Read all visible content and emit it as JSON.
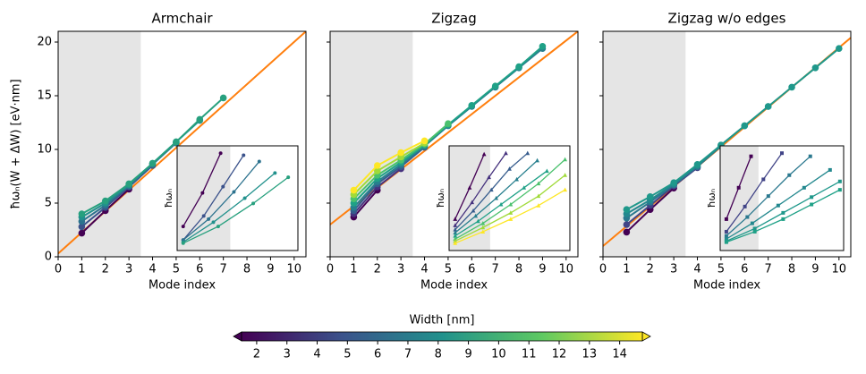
{
  "chart_data": [
    {
      "type": "line",
      "title": "Armchair",
      "xlabel": "Mode index",
      "ylabel": "ħωₙ(W + ΔW) [eV·nm]",
      "xlim": [
        0,
        10.5
      ],
      "ylim": [
        0,
        21
      ],
      "xticks": [
        0,
        1,
        2,
        3,
        4,
        5,
        6,
        7,
        8,
        9,
        10
      ],
      "yticks": [
        0,
        5,
        10,
        15,
        20
      ],
      "show_ytick_labels": true,
      "shaded_x": [
        0,
        3.5
      ],
      "marker": "o",
      "fit_line": {
        "x": [
          0,
          10.5
        ],
        "values": [
          0.3,
          21
        ],
        "color": "#ff7f0e"
      },
      "series": [
        {
          "color": "#440154",
          "x": [
            1,
            2,
            3
          ],
          "values": [
            2.2,
            4.3,
            6.3
          ]
        },
        {
          "color": "#3b528b",
          "x": [
            1,
            2,
            3,
            4
          ],
          "values": [
            2.8,
            4.6,
            6.5,
            8.5
          ]
        },
        {
          "color": "#2c728e",
          "x": [
            1,
            2,
            3,
            4,
            5
          ],
          "values": [
            3.3,
            4.8,
            6.6,
            8.6,
            10.6
          ]
        },
        {
          "color": "#21918c",
          "x": [
            1,
            2,
            3,
            4,
            5,
            6
          ],
          "values": [
            3.7,
            5.0,
            6.7,
            8.7,
            10.7,
            12.7
          ]
        },
        {
          "color": "#27a07e",
          "x": [
            1,
            2,
            3,
            4,
            5,
            6,
            7
          ],
          "values": [
            4.0,
            5.2,
            6.8,
            8.7,
            10.7,
            12.8,
            14.8
          ]
        }
      ],
      "inset": {
        "ylabel": "ħωₙ",
        "xlim": [
          0,
          10
        ],
        "ylim": [
          0,
          10
        ],
        "shaded_x": [
          0,
          4.4
        ],
        "marker": "o",
        "series": [
          {
            "color": "#440154",
            "x": [
              0.5,
              2.1,
              3.6
            ],
            "values": [
              2.3,
              5.5,
              9.3
            ]
          },
          {
            "color": "#3b528b",
            "x": [
              0.5,
              2.2,
              3.8,
              5.5
            ],
            "values": [
              1.0,
              3.3,
              6.1,
              9.1
            ]
          },
          {
            "color": "#2c728e",
            "x": [
              0.5,
              2.6,
              4.7,
              6.8
            ],
            "values": [
              1.0,
              3.0,
              5.6,
              8.5
            ]
          },
          {
            "color": "#21918c",
            "x": [
              0.5,
              3.0,
              5.6,
              8.1
            ],
            "values": [
              0.8,
              2.7,
              5.0,
              7.4
            ]
          },
          {
            "color": "#27a07e",
            "x": [
              0.5,
              3.4,
              6.3,
              9.2
            ],
            "values": [
              0.7,
              2.3,
              4.5,
              7.0
            ]
          }
        ]
      }
    },
    {
      "type": "line",
      "title": "Zigzag",
      "xlabel": "Mode index",
      "xlim": [
        0,
        10.5
      ],
      "ylim": [
        0,
        21
      ],
      "xticks": [
        0,
        1,
        2,
        3,
        4,
        5,
        6,
        7,
        8,
        9,
        10
      ],
      "yticks": [
        0,
        5,
        10,
        15,
        20
      ],
      "show_ytick_labels": false,
      "shaded_x": [
        0,
        3.5
      ],
      "marker": "o",
      "fit_line": {
        "x": [
          0,
          10.5
        ],
        "values": [
          3.0,
          21
        ],
        "color": "#ff7f0e"
      },
      "series": [
        {
          "color": "#440154",
          "x": [
            1,
            2
          ],
          "values": [
            3.7,
            6.2
          ]
        },
        {
          "color": "#46327e",
          "x": [
            1,
            2,
            3
          ],
          "values": [
            4.0,
            6.5,
            8.2
          ]
        },
        {
          "color": "#365c8d",
          "x": [
            1,
            2,
            3,
            4
          ],
          "values": [
            4.3,
            6.8,
            8.4,
            10.2
          ]
        },
        {
          "color": "#277f8e",
          "x": [
            1,
            2,
            3,
            4,
            5,
            6,
            7,
            8,
            9
          ],
          "values": [
            4.6,
            7.0,
            8.6,
            10.3,
            12.2,
            14.0,
            15.8,
            17.6,
            19.4
          ]
        },
        {
          "color": "#1fa187",
          "x": [
            1,
            2,
            3,
            4,
            5,
            6,
            7,
            8,
            9
          ],
          "values": [
            5.0,
            7.3,
            8.8,
            10.4,
            12.3,
            14.1,
            15.9,
            17.7,
            19.6
          ]
        },
        {
          "color": "#4ac16d",
          "x": [
            1,
            2,
            3,
            4,
            5
          ],
          "values": [
            5.4,
            7.6,
            9.0,
            10.5,
            12.4
          ]
        },
        {
          "color": "#a0da39",
          "x": [
            1,
            2,
            3,
            4
          ],
          "values": [
            5.8,
            8.0,
            9.3,
            10.6
          ]
        },
        {
          "color": "#fde725",
          "x": [
            1,
            2,
            3,
            4
          ],
          "values": [
            6.2,
            8.5,
            9.7,
            10.8
          ]
        }
      ],
      "inset": {
        "ylabel": "ħωₙ",
        "xlim": [
          0,
          10
        ],
        "ylim": [
          0,
          10
        ],
        "shaded_x": [
          0,
          3.4
        ],
        "marker": "^",
        "series": [
          {
            "color": "#440154",
            "x": [
              0.5,
              1.7,
              2.9
            ],
            "values": [
              3.0,
              6.0,
              9.2
            ]
          },
          {
            "color": "#46327e",
            "x": [
              0.5,
              1.9,
              3.3,
              4.7
            ],
            "values": [
              2.4,
              4.6,
              7.0,
              9.3
            ]
          },
          {
            "color": "#365c8d",
            "x": [
              0.5,
              2.0,
              3.5,
              5.0,
              6.5
            ],
            "values": [
              2.0,
              3.8,
              5.8,
              7.8,
              9.3
            ]
          },
          {
            "color": "#277f8e",
            "x": [
              0.5,
              2.2,
              3.9,
              5.6,
              7.3
            ],
            "values": [
              1.7,
              3.3,
              5.0,
              6.8,
              8.6
            ]
          },
          {
            "color": "#1fa187",
            "x": [
              0.5,
              2.4,
              4.3,
              6.2,
              8.1
            ],
            "values": [
              1.4,
              2.8,
              4.4,
              6.0,
              7.6
            ]
          },
          {
            "color": "#4ac16d",
            "x": [
              0.5,
              2.8,
              5.1,
              7.4,
              9.6
            ],
            "values": [
              1.1,
              2.6,
              4.4,
              6.4,
              8.7
            ]
          },
          {
            "color": "#a0da39",
            "x": [
              0.5,
              2.8,
              5.1,
              7.4,
              9.6
            ],
            "values": [
              0.9,
              2.2,
              3.6,
              5.2,
              7.2
            ]
          },
          {
            "color": "#fde725",
            "x": [
              0.5,
              2.8,
              5.1,
              7.4,
              9.6
            ],
            "values": [
              0.7,
              1.8,
              3.0,
              4.3,
              5.8
            ]
          }
        ]
      }
    },
    {
      "type": "line",
      "title": "Zigzag w/o edges",
      "xlabel": "Mode index",
      "xlim": [
        0,
        10.5
      ],
      "ylim": [
        0,
        21
      ],
      "xticks": [
        0,
        1,
        2,
        3,
        4,
        5,
        6,
        7,
        8,
        9,
        10
      ],
      "yticks": [
        0,
        5,
        10,
        15,
        20
      ],
      "show_ytick_labels": false,
      "shaded_x": [
        0,
        3.5
      ],
      "marker": "o",
      "fit_line": {
        "x": [
          0,
          10.5
        ],
        "values": [
          1.0,
          20.4
        ],
        "color": "#ff7f0e"
      },
      "series": [
        {
          "color": "#440154",
          "x": [
            1,
            2,
            3
          ],
          "values": [
            2.3,
            4.4,
            6.4
          ]
        },
        {
          "color": "#414487",
          "x": [
            1,
            2,
            3,
            4
          ],
          "values": [
            3.0,
            4.8,
            6.6,
            8.3
          ]
        },
        {
          "color": "#2a788e",
          "x": [
            1,
            2,
            3,
            4,
            5
          ],
          "values": [
            3.6,
            5.1,
            6.7,
            8.4,
            10.3
          ]
        },
        {
          "color": "#23888e",
          "x": [
            1,
            2,
            3,
            4,
            5,
            6,
            7
          ],
          "values": [
            4.0,
            5.3,
            6.8,
            8.5,
            10.4,
            12.2,
            14.0
          ]
        },
        {
          "color": "#1f988b",
          "x": [
            1,
            2,
            3,
            4,
            5,
            6,
            7,
            8,
            9,
            10
          ],
          "values": [
            4.4,
            5.6,
            6.9,
            8.6,
            10.4,
            12.2,
            14.0,
            15.8,
            17.6,
            19.4
          ]
        }
      ],
      "inset": {
        "ylabel": "ħωₙ",
        "xlim": [
          0,
          10
        ],
        "ylim": [
          0,
          10
        ],
        "shaded_x": [
          0,
          3.1
        ],
        "marker": "s",
        "series": [
          {
            "color": "#440154",
            "x": [
              0.5,
              1.5,
              2.5
            ],
            "values": [
              3.0,
              6.0,
              9.0
            ]
          },
          {
            "color": "#414487",
            "x": [
              0.5,
              2.0,
              3.5,
              5.0
            ],
            "values": [
              1.8,
              4.2,
              6.8,
              9.3
            ]
          },
          {
            "color": "#2a788e",
            "x": [
              0.5,
              2.2,
              3.9,
              5.6,
              7.3
            ],
            "values": [
              1.4,
              3.2,
              5.2,
              7.2,
              9.0
            ]
          },
          {
            "color": "#23888e",
            "x": [
              0.5,
              2.6,
              4.7,
              6.8,
              8.9
            ],
            "values": [
              1.1,
              2.6,
              4.3,
              6.0,
              7.7
            ]
          },
          {
            "color": "#1f988b",
            "x": [
              0.5,
              2.8,
              5.1,
              7.4,
              9.7
            ],
            "values": [
              0.9,
              2.1,
              3.6,
              5.1,
              6.6
            ]
          },
          {
            "color": "#1fa187",
            "x": [
              0.5,
              2.8,
              5.1,
              7.4,
              9.7
            ],
            "values": [
              0.8,
              1.8,
              3.0,
              4.4,
              5.8
            ]
          }
        ]
      }
    }
  ],
  "colorbar": {
    "label": "Width [nm]",
    "lim": [
      1.5,
      14.75
    ],
    "ticks": [
      2,
      3,
      4,
      5,
      6,
      7,
      8,
      9,
      10,
      11,
      12,
      13,
      14
    ],
    "colors": [
      "#440154",
      "#3b528b",
      "#21918c",
      "#5ec962",
      "#fde725"
    ]
  }
}
